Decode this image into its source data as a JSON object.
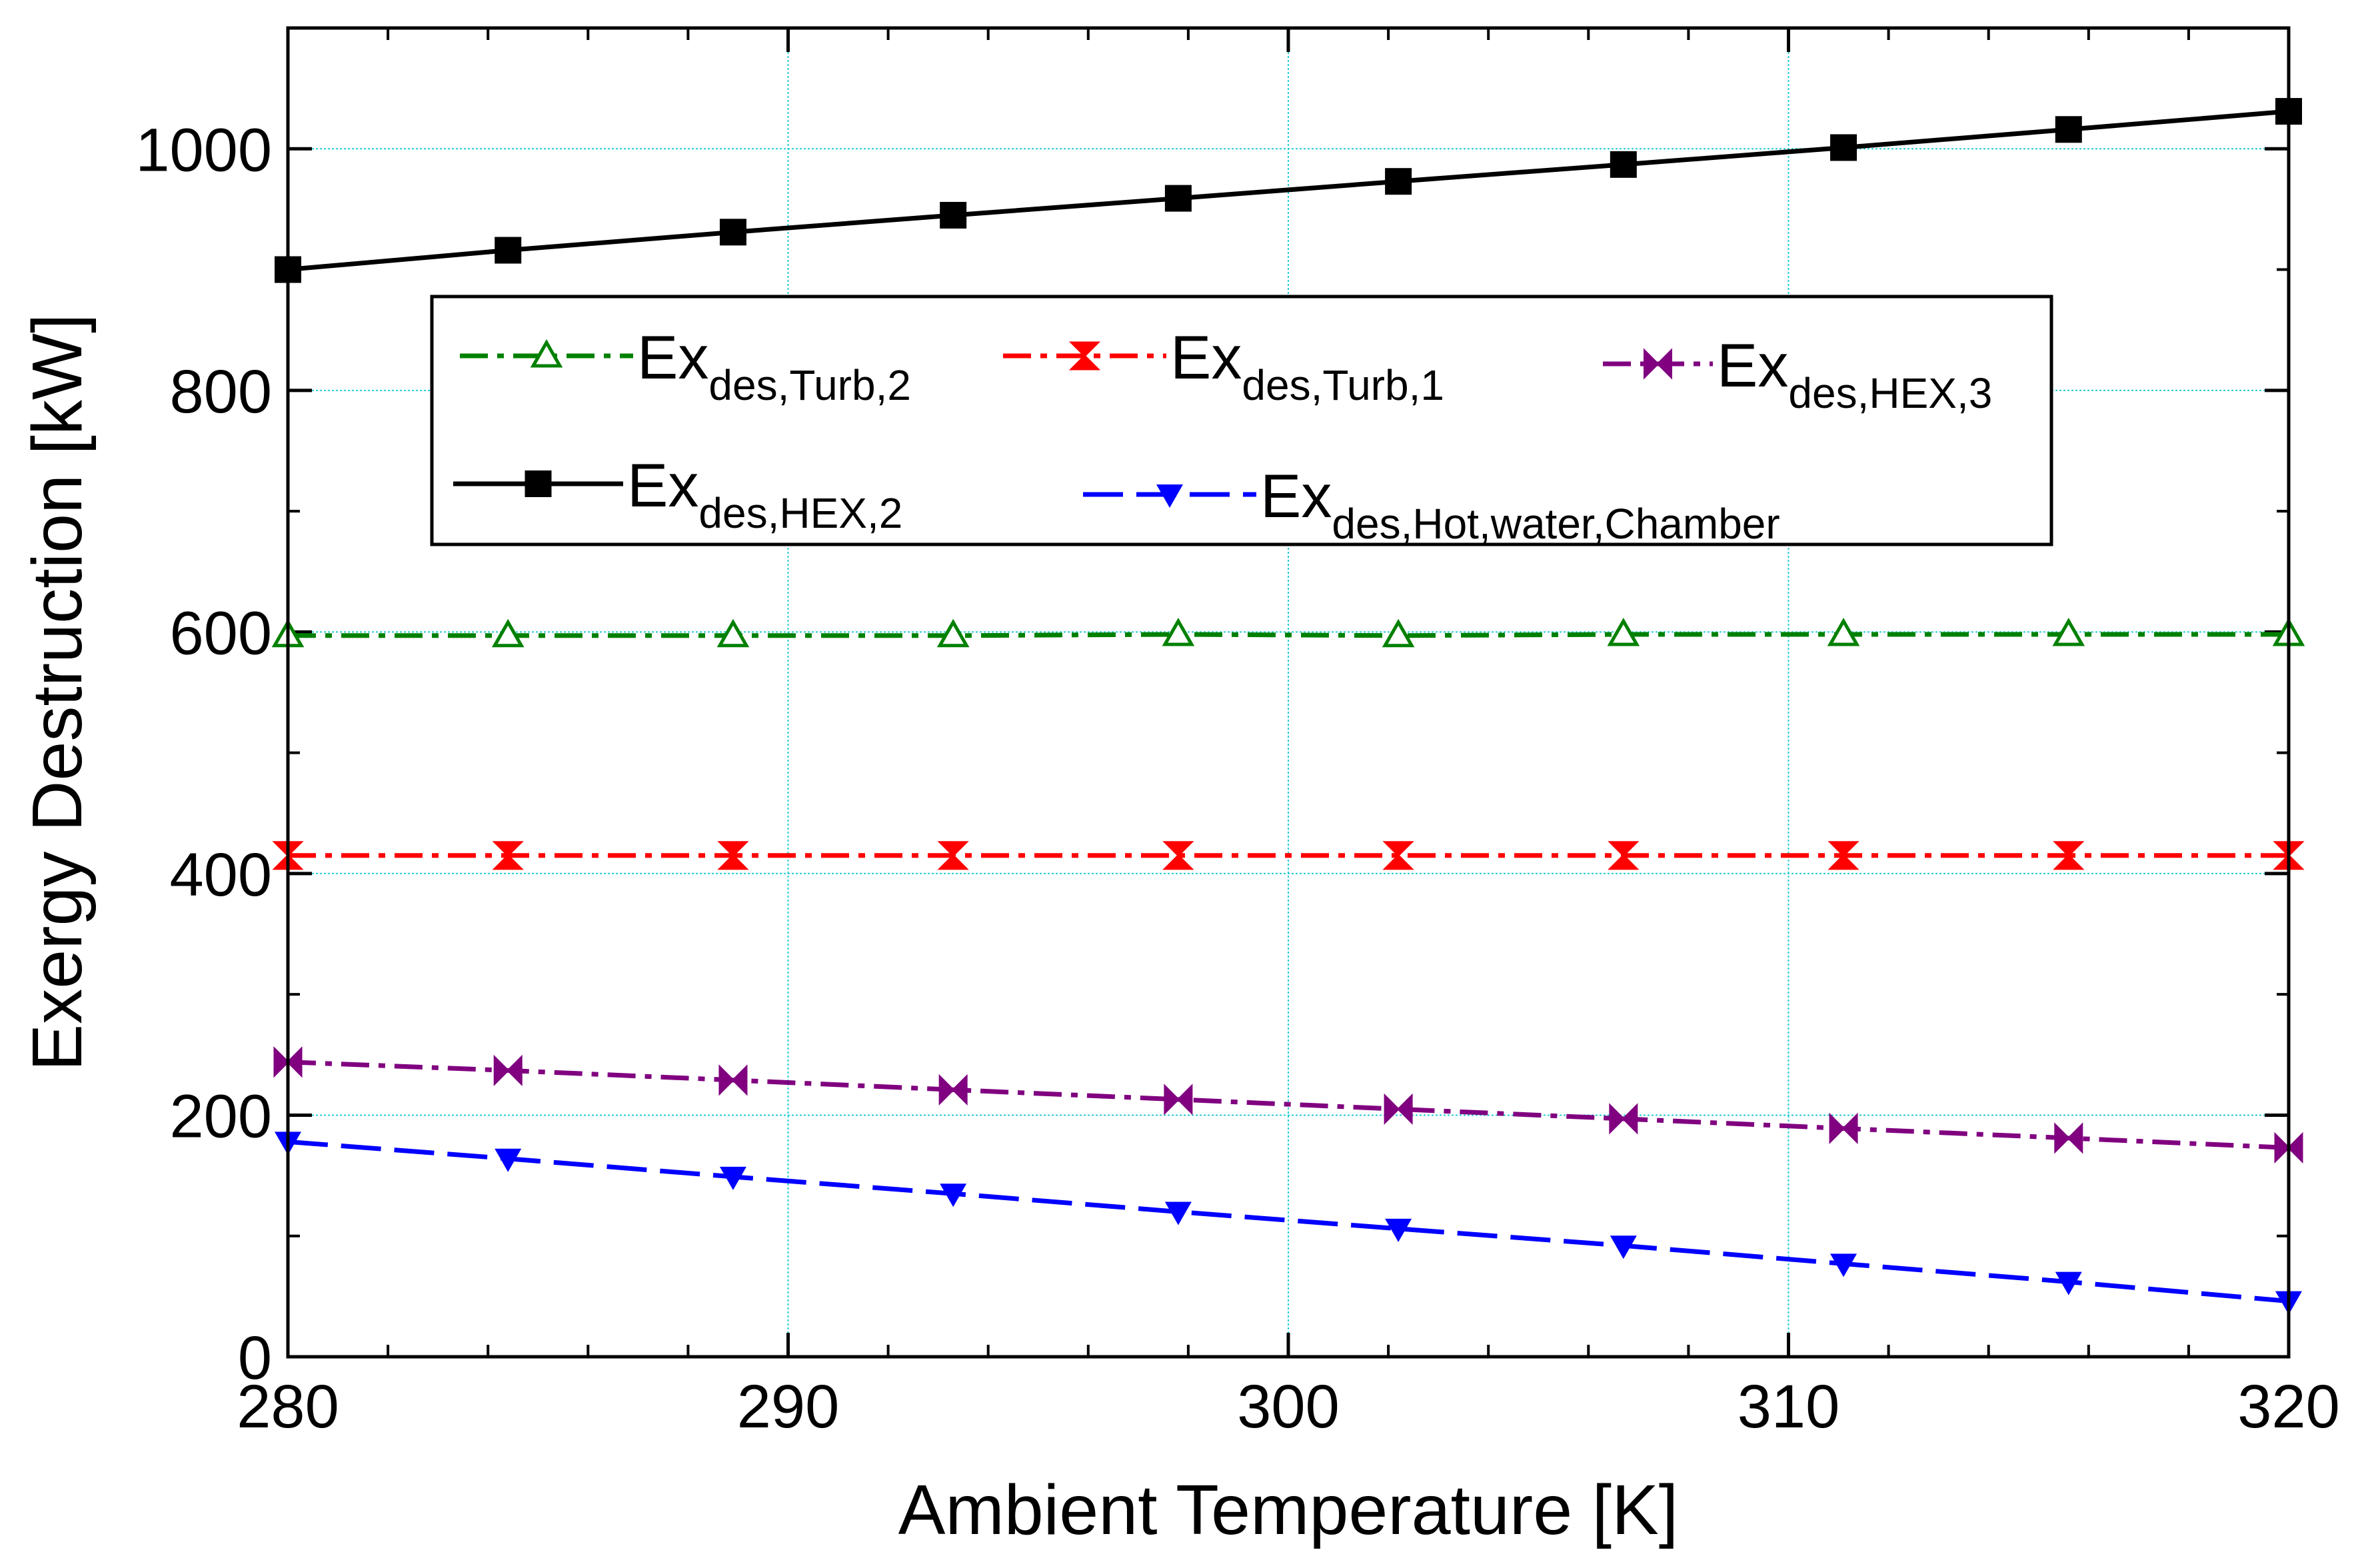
{
  "chart_data": {
    "type": "line",
    "title": "",
    "xlabel": "Ambient Temperature [K]",
    "ylabel": "Exergy Destruction [kW]",
    "xlim": [
      280,
      320
    ],
    "ylim": [
      0,
      1100
    ],
    "x_ticks": [
      "280",
      "290",
      "300",
      "310",
      "320"
    ],
    "y_ticks": [
      "0",
      "200",
      "400",
      "600",
      "800",
      "1000"
    ],
    "x_tick_values": [
      280,
      290,
      300,
      310,
      320
    ],
    "y_tick_values": [
      0,
      200,
      400,
      600,
      800,
      1000
    ],
    "x_minor_step": 2,
    "y_minor_step": 100,
    "grid": true,
    "legend_position": "upper-middle",
    "x": [
      280,
      284.4,
      288.9,
      293.3,
      297.8,
      302.2,
      306.7,
      311.1,
      315.6,
      320
    ],
    "series": [
      {
        "name": "Ex",
        "subscript": "des,Turb,2",
        "color": "#008000",
        "dash": "dash-dot",
        "marker": "triangle-up-open",
        "values": [
          597,
          597,
          597,
          597,
          598,
          597,
          598,
          598,
          598,
          598
        ]
      },
      {
        "name": "Ex",
        "subscript": "des,Turb,1",
        "color": "#ff0000",
        "dash": "dash-dot",
        "marker": "hourglass",
        "values": [
          415,
          415,
          415,
          415,
          415,
          415,
          415,
          415,
          415,
          415
        ]
      },
      {
        "name": "Ex",
        "subscript": "des,HEX,3",
        "color": "#800080",
        "dash": "dash-dot",
        "marker": "bowtie",
        "values": [
          244,
          237,
          229,
          221,
          213,
          205,
          197,
          189,
          181,
          173
        ]
      },
      {
        "name": "Ex",
        "subscript": "des,HEX,2",
        "color": "#000000",
        "dash": "solid",
        "marker": "square-filled",
        "values": [
          900,
          916,
          931,
          945,
          959,
          973,
          987,
          1001,
          1016,
          1031
        ]
      },
      {
        "name": "Ex",
        "subscript": "des,Hot,water,Chamber",
        "color": "#0000ff",
        "dash": "long-dash",
        "marker": "triangle-down-filled",
        "values": [
          178,
          164,
          149,
          135,
          120,
          106,
          92,
          77,
          62,
          46
        ]
      }
    ]
  }
}
